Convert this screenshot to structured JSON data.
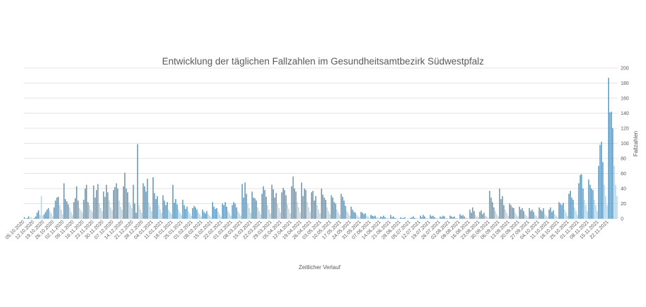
{
  "chart_data": {
    "type": "bar",
    "title": "Entwicklung der täglichen Fallzahlen im Gesundheitsamtbezirk Südwestpfalz",
    "xlabel": "Zeitlicher Verlauf",
    "ylabel": "Fallzahlen",
    "ylim": [
      0,
      200
    ],
    "yticks": [
      "0",
      "20",
      "40",
      "60",
      "80",
      "100",
      "120",
      "140",
      "160",
      "180",
      "200"
    ],
    "y_axis_position": "right",
    "grid": true,
    "legend": "none",
    "x_tick_labels": [
      "05.10.2020",
      "12.10.2020",
      "19.10.2020",
      "26.10.2020",
      "02.11.2020",
      "09.11.2020",
      "16.11.2020",
      "23.11.2020",
      "30.11.2020",
      "07.12.2020",
      "14.12.2020",
      "21.12.2020",
      "28.12.2020",
      "04.01.2021",
      "11.01.2021",
      "18.01.2021",
      "25.01.2021",
      "01.02.2021",
      "08.02.2021",
      "15.02.2021",
      "22.02.2021",
      "01.03.2021",
      "08.03.2021",
      "15.03.2021",
      "22.03.2021",
      "29.03.2021",
      "05.04.2021",
      "12.04.2021",
      "19.04.2021",
      "26.04.2021",
      "03.05.2021",
      "10.05.2021",
      "17.05.2021",
      "24.05.2021",
      "31.05.2021",
      "07.06.2021",
      "14.06.2021",
      "21.06.2021",
      "28.06.2021",
      "05.07.2021",
      "12.07.2021",
      "19.07.2021",
      "26.07.2021",
      "02.08.2021",
      "09.08.2021",
      "16.08.2021",
      "23.08.2021",
      "30.08.2021",
      "06.09.2021",
      "13.09.2021",
      "20.09.2021",
      "27.09.2021",
      "04.10.2021",
      "11.10.2021",
      "18.10.2021",
      "25.10.2021",
      "01.11.2021",
      "08.11.2021",
      "15.11.2021",
      "22.11.2021"
    ],
    "weekly_values": [
      [
        2,
        0,
        1,
        3,
        1,
        2,
        0
      ],
      [
        1,
        3,
        8,
        11,
        5,
        30,
        4
      ],
      [
        6,
        9,
        12,
        14,
        10,
        7,
        3
      ],
      [
        15,
        24,
        28,
        29,
        18,
        12,
        6
      ],
      [
        47,
        26,
        23,
        19,
        15,
        9,
        5
      ],
      [
        22,
        27,
        43,
        24,
        14,
        11,
        8
      ],
      [
        25,
        40,
        45,
        22,
        18,
        12,
        9
      ],
      [
        44,
        28,
        38,
        46,
        20,
        14,
        10
      ],
      [
        36,
        29,
        45,
        35,
        24,
        15,
        11
      ],
      [
        38,
        42,
        47,
        40,
        24,
        16,
        12
      ],
      [
        43,
        61,
        40,
        35,
        22,
        18,
        14
      ],
      [
        45,
        20,
        8,
        99,
        18,
        12,
        8
      ],
      [
        47,
        43,
        36,
        53,
        21,
        16,
        10
      ],
      [
        55,
        34,
        26,
        30,
        18,
        12,
        8
      ],
      [
        31,
        24,
        18,
        22,
        12,
        9,
        6
      ],
      [
        45,
        21,
        26,
        19,
        12,
        8,
        5
      ],
      [
        25,
        18,
        13,
        16,
        10,
        7,
        4
      ],
      [
        14,
        17,
        15,
        12,
        8,
        6,
        3
      ],
      [
        12,
        9,
        7,
        10,
        6,
        4,
        2
      ],
      [
        22,
        16,
        13,
        14,
        9,
        6,
        3
      ],
      [
        20,
        18,
        22,
        16,
        10,
        7,
        4
      ],
      [
        18,
        22,
        20,
        15,
        10,
        7,
        4
      ],
      [
        46,
        28,
        48,
        33,
        20,
        14,
        8
      ],
      [
        36,
        28,
        27,
        24,
        15,
        10,
        6
      ],
      [
        33,
        43,
        38,
        29,
        18,
        12,
        7
      ],
      [
        45,
        39,
        28,
        34,
        20,
        14,
        8
      ],
      [
        35,
        41,
        38,
        31,
        19,
        13,
        7
      ],
      [
        43,
        56,
        40,
        36,
        22,
        15,
        8
      ],
      [
        48,
        30,
        40,
        38,
        22,
        15,
        9
      ],
      [
        35,
        37,
        24,
        30,
        18,
        12,
        7
      ],
      [
        40,
        32,
        28,
        25,
        15,
        10,
        6
      ],
      [
        31,
        28,
        22,
        20,
        12,
        8,
        5
      ],
      [
        33,
        29,
        24,
        17,
        10,
        7,
        4
      ],
      [
        16,
        12,
        9,
        8,
        5,
        3,
        2
      ],
      [
        9,
        8,
        6,
        7,
        4,
        3,
        1
      ],
      [
        5,
        4,
        3,
        4,
        2,
        2,
        1
      ],
      [
        3,
        2,
        4,
        2,
        1,
        1,
        0
      ],
      [
        5,
        2,
        3,
        1,
        1,
        0,
        0
      ],
      [
        2,
        1,
        1,
        2,
        0,
        0,
        0
      ],
      [
        1,
        2,
        3,
        1,
        1,
        0,
        0
      ],
      [
        4,
        2,
        5,
        3,
        1,
        1,
        0
      ],
      [
        5,
        3,
        4,
        2,
        1,
        1,
        0
      ],
      [
        3,
        2,
        4,
        3,
        1,
        1,
        0
      ],
      [
        4,
        3,
        2,
        3,
        1,
        1,
        0
      ],
      [
        6,
        4,
        5,
        3,
        2,
        1,
        0
      ],
      [
        12,
        8,
        15,
        10,
        5,
        3,
        2
      ],
      [
        9,
        11,
        6,
        8,
        4,
        3,
        1
      ],
      [
        37,
        28,
        22,
        15,
        10,
        6,
        3
      ],
      [
        40,
        26,
        30,
        18,
        12,
        8,
        4
      ],
      [
        20,
        18,
        15,
        14,
        8,
        5,
        3
      ],
      [
        16,
        12,
        14,
        10,
        6,
        4,
        2
      ],
      [
        14,
        10,
        12,
        9,
        5,
        4,
        2
      ],
      [
        15,
        12,
        10,
        14,
        6,
        4,
        2
      ],
      [
        12,
        15,
        9,
        11,
        6,
        4,
        2
      ],
      [
        22,
        20,
        18,
        21,
        12,
        8,
        4
      ],
      [
        33,
        37,
        28,
        25,
        15,
        10,
        5
      ],
      [
        47,
        58,
        59,
        40,
        25,
        18,
        10
      ],
      [
        52,
        45,
        40,
        38,
        25,
        18,
        10
      ],
      [
        70,
        98,
        102,
        75,
        45,
        30,
        18
      ],
      [
        187,
        141,
        142,
        120,
        70,
        45,
        30
      ]
    ],
    "colors": {
      "bar_dark": "#5b91b4",
      "bar_light": "#b4d2e2",
      "gridline": "#e3e3e3",
      "text": "#595959"
    }
  }
}
